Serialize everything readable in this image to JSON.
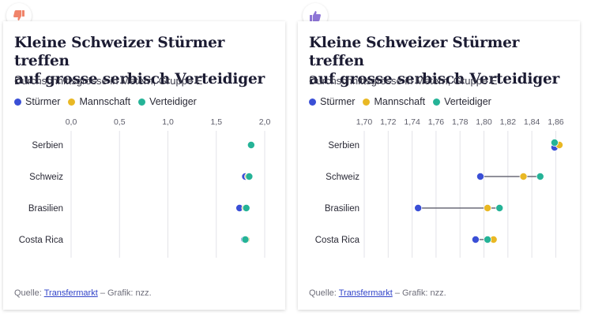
{
  "colors": {
    "stuermer": "#3a4fd6",
    "mannschaft": "#e9b824",
    "verteidiger": "#25b397",
    "grid": "#e3e3e8",
    "connector": "#6b6b78",
    "thumb_down": "#f0846a",
    "thumb_up": "#8d75d6"
  },
  "panels": [
    {
      "badge_icon": "thumbs-down-icon",
      "title_line1": "Kleine Schweizer Stürmer treffen",
      "title_line2": "auf grosse serbisch Verteidiger",
      "subtitle": "Durchschnittsgrösse in Metern, Gruppe E",
      "legend": [
        "Stürmer",
        "Mannschaft",
        "Verteidiger"
      ],
      "source_label": "Quelle:",
      "source_link": "Transfermarkt",
      "credit": " – Grafik: nzz."
    },
    {
      "badge_icon": "thumbs-up-icon",
      "title_line1": "Kleine Schweizer Stürmer treffen",
      "title_line2": "auf grosse serbisch Verteidiger",
      "subtitle": "Durchschnittsgrösse in Metern, Gruppe E",
      "legend": [
        "Stürmer",
        "Mannschaft",
        "Verteidiger"
      ],
      "source_label": "Quelle:",
      "source_link": "Transfermarkt",
      "credit": " – Grafik: nzz."
    }
  ],
  "chart_data": [
    {
      "type": "scatter",
      "title": "Kleine Schweizer Stürmer treffen auf grosse serbisch Verteidiger",
      "subtitle": "Durchschnittsgrösse in Metern, Gruppe E",
      "categories": [
        "Serbien",
        "Schweiz",
        "Brasilien",
        "Costa Rica"
      ],
      "xlim": [
        0,
        2.0
      ],
      "ticks": [
        0,
        0.5,
        1.0,
        1.5,
        2.0
      ],
      "tick_labels": [
        "0,0",
        "0,5",
        "1,0",
        "1,5",
        "2,0"
      ],
      "connectors": false,
      "series": [
        {
          "name": "Stürmer",
          "values": [
            1.86,
            1.8,
            1.74,
            1.79
          ]
        },
        {
          "name": "Mannschaft",
          "values": [
            1.86,
            1.83,
            1.8,
            1.81
          ]
        },
        {
          "name": "Verteidiger",
          "values": [
            1.86,
            1.84,
            1.81,
            1.8
          ]
        }
      ],
      "legend": "top-left",
      "grid": true
    },
    {
      "type": "scatter",
      "title": "Kleine Schweizer Stürmer treffen auf grosse serbisch Verteidiger",
      "subtitle": "Durchschnittsgrösse in Metern, Gruppe E",
      "categories": [
        "Serbien",
        "Schweiz",
        "Brasilien",
        "Costa Rica"
      ],
      "xlim": [
        1.7,
        1.865
      ],
      "ticks": [
        1.7,
        1.72,
        1.74,
        1.76,
        1.78,
        1.8,
        1.82,
        1.84,
        1.86
      ],
      "tick_labels": [
        "1,70",
        "1,72",
        "1,74",
        "1,76",
        "1,78",
        "1,80",
        "1,82",
        "1,84",
        "1,86"
      ],
      "connectors": true,
      "series": [
        {
          "name": "Stürmer",
          "values": [
            1.859,
            1.797,
            1.745,
            1.793
          ]
        },
        {
          "name": "Mannschaft",
          "values": [
            1.863,
            1.833,
            1.803,
            1.808
          ]
        },
        {
          "name": "Verteidiger",
          "values": [
            1.859,
            1.847,
            1.813,
            1.803
          ]
        }
      ],
      "legend": "top-left",
      "grid": true
    }
  ]
}
